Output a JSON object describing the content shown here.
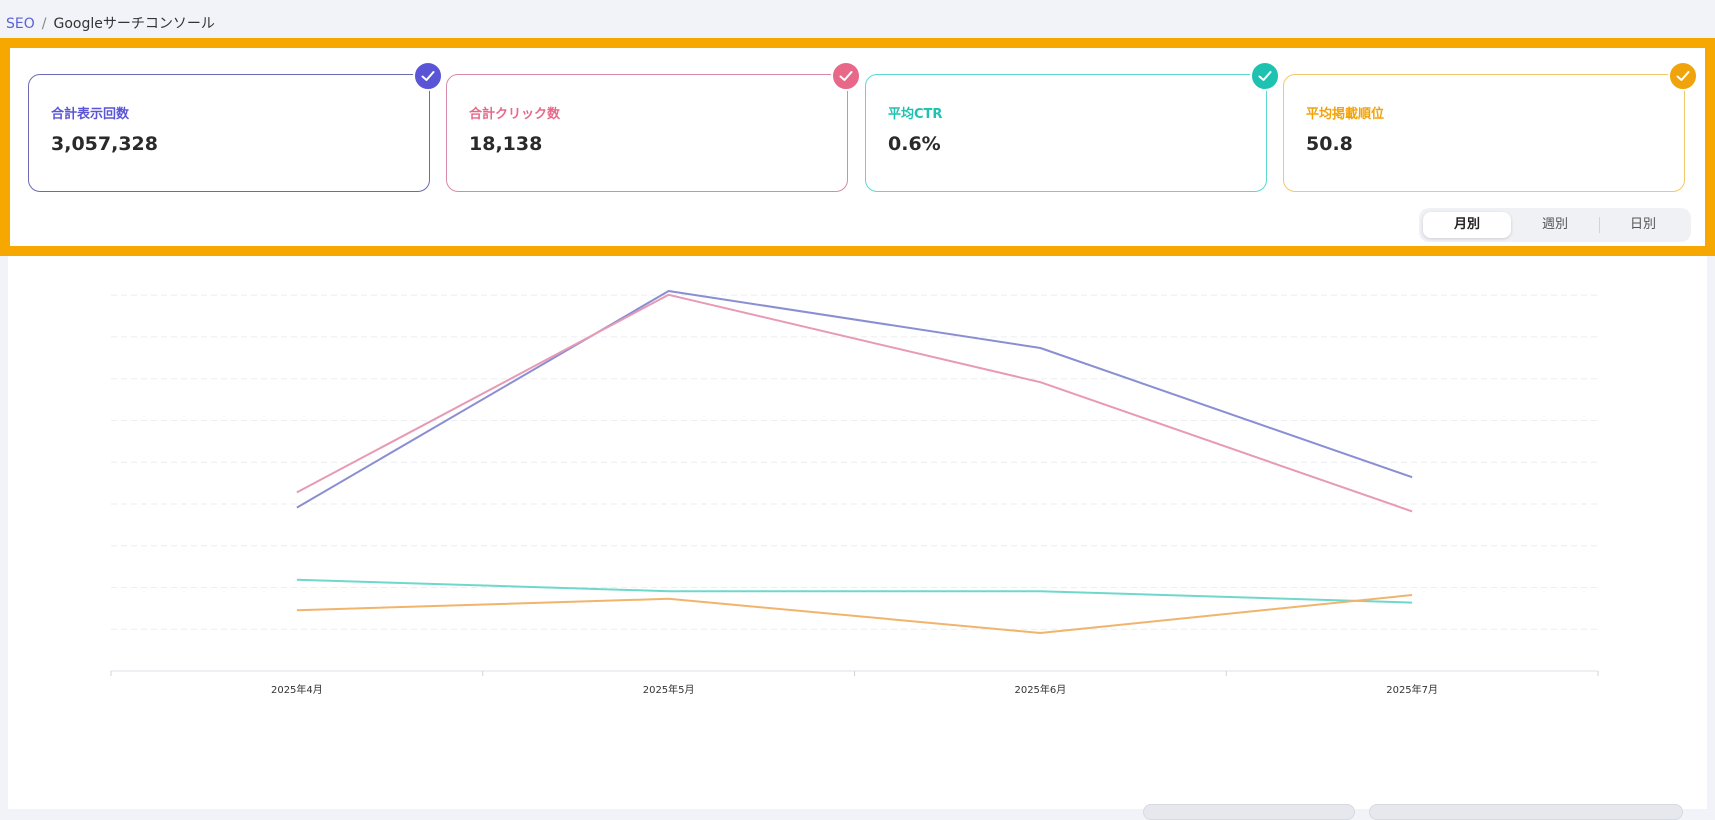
{
  "breadcrumb": {
    "section": "SEO",
    "separator": "/",
    "current": "Googleサーチコンソール"
  },
  "metrics": [
    {
      "label": "合計表示回数",
      "value": "3,057,328",
      "color": "#5a55d6",
      "border": "#6b6bb5",
      "checked": true
    },
    {
      "label": "合計クリック数",
      "value": "18,138",
      "color": "#e8688a",
      "border": "#d88aaa",
      "checked": true
    },
    {
      "label": "平均CTR",
      "value": "0.6%",
      "color": "#1dc2b0",
      "border": "#5fd6cf",
      "checked": true
    },
    {
      "label": "平均掲載順位",
      "value": "50.8",
      "color": "#f0a30a",
      "border": "#f3c86a",
      "checked": true
    }
  ],
  "period_toggle": {
    "options": [
      "月別",
      "週別",
      "日別"
    ],
    "selected": "月別"
  },
  "highlight_color": "#f6a800",
  "chart_data": {
    "type": "line",
    "categories": [
      "2025年4月",
      "2025年5月",
      "2025年6月",
      "2025年7月"
    ],
    "series": [
      {
        "metric": "impressions",
        "color": "#8a8ed2",
        "values": [
          0.43,
          1.0,
          0.85,
          0.51
        ]
      },
      {
        "metric": "clicks",
        "color": "#e79ab5",
        "values": [
          0.47,
          0.99,
          0.76,
          0.42
        ]
      },
      {
        "metric": "ctr",
        "color": "#6fd8cc",
        "values": [
          0.24,
          0.21,
          0.21,
          0.18
        ]
      },
      {
        "metric": "position",
        "color": "#f0b46c",
        "values": [
          0.16,
          0.19,
          0.1,
          0.2
        ]
      }
    ],
    "ylim": [
      0,
      1
    ],
    "y_axis_labels_visible": false,
    "grid": "dashed horizontal"
  }
}
